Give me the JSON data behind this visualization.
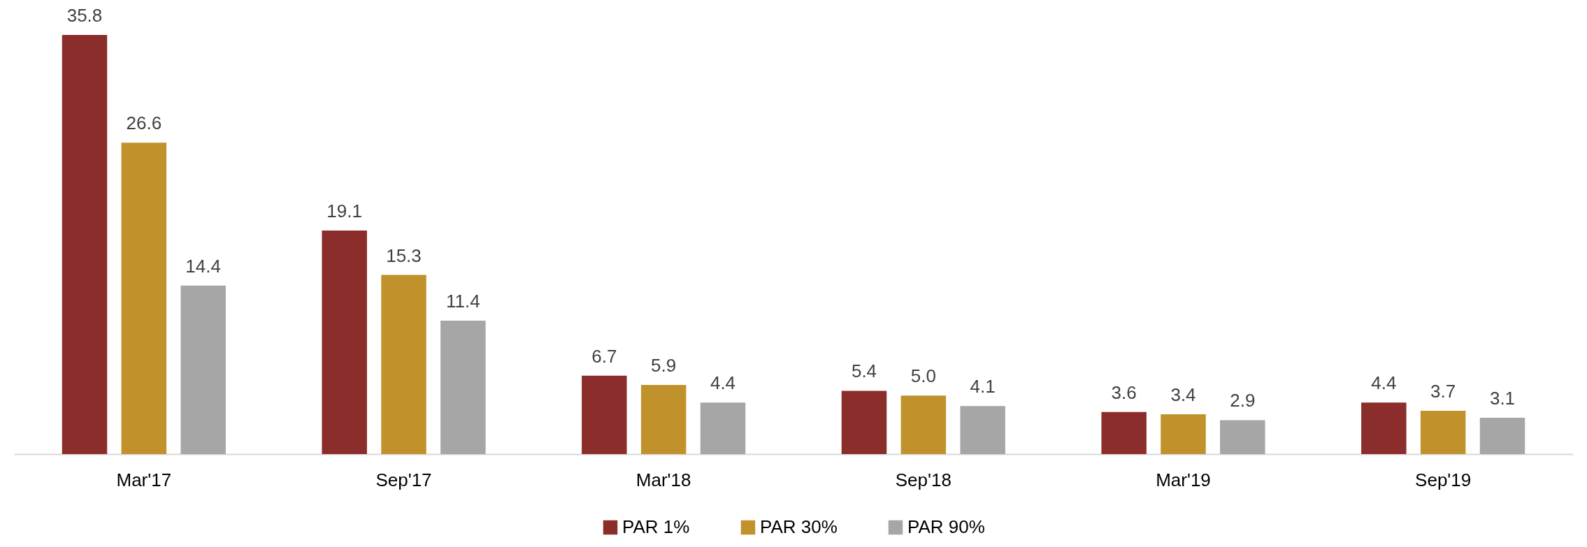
{
  "chart_data": {
    "type": "bar",
    "categories": [
      "Mar'17",
      "Sep'17",
      "Mar'18",
      "Sep'18",
      "Mar'19",
      "Sep'19"
    ],
    "series": [
      {
        "name": "PAR 1%",
        "color": "#8b2d2a",
        "values": [
          35.8,
          19.1,
          6.7,
          5.4,
          3.6,
          4.4
        ],
        "value_labels": [
          "35.8",
          "19.1",
          "6.7",
          "5.4",
          "3.6",
          "4.4"
        ]
      },
      {
        "name": "PAR 30%",
        "color": "#c1922c",
        "values": [
          26.6,
          15.3,
          5.9,
          5.0,
          3.4,
          3.7
        ],
        "value_labels": [
          "26.6",
          "15.3",
          "5.9",
          "5.0",
          "3.4",
          "3.7"
        ]
      },
      {
        "name": "PAR 90%",
        "color": "#a6a6a6",
        "values": [
          14.4,
          11.4,
          4.4,
          4.1,
          2.9,
          3.1
        ],
        "value_labels": [
          "14.4",
          "11.4",
          "4.4",
          "4.1",
          "2.9",
          "3.1"
        ]
      }
    ],
    "legend": "bottom",
    "grid": false
  }
}
